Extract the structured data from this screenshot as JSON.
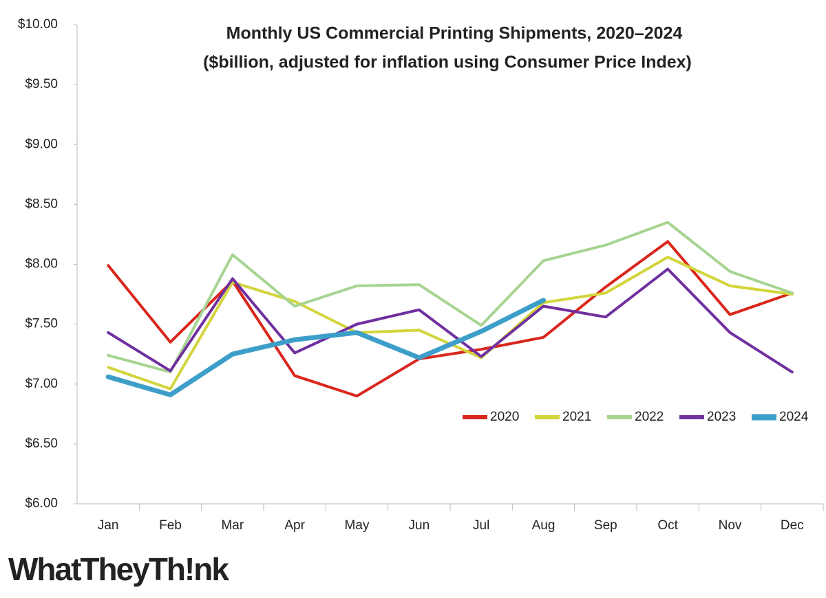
{
  "chart_data": {
    "type": "line",
    "title": "Monthly US Commercial Printing Shipments, 2020–2024",
    "subtitle": "($billion, adjusted for inflation using Consumer Price Index)",
    "categories": [
      "Jan",
      "Feb",
      "Mar",
      "Apr",
      "May",
      "Jun",
      "Jul",
      "Aug",
      "Sep",
      "Oct",
      "Nov",
      "Dec"
    ],
    "series": [
      {
        "name": "2020",
        "color": "#d9261c",
        "line_width": 4,
        "values": [
          7.99,
          7.35,
          7.86,
          7.07,
          6.9,
          7.21,
          7.29,
          7.39,
          7.81,
          8.19,
          7.58,
          7.76
        ]
      },
      {
        "name": "2021",
        "color": "#d2d53a",
        "line_width": 4,
        "values": [
          7.14,
          6.96,
          7.85,
          7.69,
          7.43,
          7.45,
          7.22,
          7.68,
          7.76,
          8.06,
          7.82,
          7.75
        ]
      },
      {
        "name": "2022",
        "color": "#a7d491",
        "line_width": 4,
        "values": [
          7.24,
          7.1,
          8.08,
          7.65,
          7.82,
          7.83,
          7.49,
          8.03,
          8.16,
          8.35,
          7.94,
          7.76
        ]
      },
      {
        "name": "2023",
        "color": "#7030a0",
        "line_width": 4,
        "values": [
          7.43,
          7.11,
          7.88,
          7.26,
          7.5,
          7.62,
          7.23,
          7.65,
          7.56,
          7.96,
          7.43,
          7.1
        ]
      },
      {
        "name": "2024",
        "color": "#3d9fc9",
        "line_width": 7,
        "values": [
          7.06,
          6.91,
          7.25,
          7.37,
          7.43,
          7.22,
          7.44,
          7.7,
          null,
          null,
          null,
          null
        ]
      }
    ],
    "ylim": [
      6,
      10
    ],
    "yticks": [
      {
        "value": 6,
        "label": "$6.00"
      },
      {
        "value": 6.5,
        "label": "$6.50"
      },
      {
        "value": 7,
        "label": "$7.00"
      },
      {
        "value": 7.5,
        "label": "$7.50"
      },
      {
        "value": 8,
        "label": "$8.00"
      },
      {
        "value": 8.5,
        "label": "$8.50"
      },
      {
        "value": 9,
        "label": "$9.00"
      },
      {
        "value": 9.5,
        "label": "$9.50"
      },
      {
        "value": 10,
        "label": "$10.00"
      }
    ],
    "grid": false,
    "legend": "lower right"
  },
  "logo": "WhatTheyTh!nk"
}
